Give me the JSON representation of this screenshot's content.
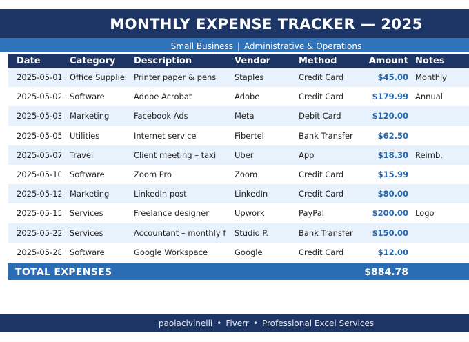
{
  "header": {
    "title": "MONTHLY EXPENSE TRACKER  —  2025",
    "subtitle_left": "Small Business",
    "subtitle_sep": "|",
    "subtitle_right": "Administrative & Operations"
  },
  "table": {
    "columns": [
      "Date",
      "Category",
      "Description",
      "Vendor",
      "Method",
      "Amount",
      "Notes"
    ],
    "rows": [
      [
        "2025-05-01",
        "Office Supplies",
        "Printer paper & pens",
        "Staples",
        "Credit Card",
        "$45.00",
        "Monthly"
      ],
      [
        "2025-05-02",
        "Software",
        "Adobe Acrobat",
        "Adobe",
        "Credit Card",
        "$179.99",
        "Annual"
      ],
      [
        "2025-05-03",
        "Marketing",
        "Facebook Ads",
        "Meta",
        "Debit Card",
        "$120.00",
        ""
      ],
      [
        "2025-05-05",
        "Utilities",
        "Internet service",
        "Fibertel",
        "Bank Transfer",
        "$62.50",
        ""
      ],
      [
        "2025-05-07",
        "Travel",
        "Client meeting – taxi",
        "Uber",
        "App",
        "$18.30",
        "Reimb."
      ],
      [
        "2025-05-10",
        "Software",
        "Zoom Pro",
        "Zoom",
        "Credit Card",
        "$15.99",
        ""
      ],
      [
        "2025-05-12",
        "Marketing",
        "LinkedIn post",
        "LinkedIn",
        "Credit Card",
        "$80.00",
        ""
      ],
      [
        "2025-05-15",
        "Services",
        "Freelance designer",
        "Upwork",
        "PayPal",
        "$200.00",
        "Logo"
      ],
      [
        "2025-05-22",
        "Services",
        "Accountant – monthly fee",
        "Studio P.",
        "Bank Transfer",
        "$150.00",
        ""
      ],
      [
        "2025-05-28",
        "Software",
        "Google Workspace",
        "Google",
        "Credit Card",
        "$12.00",
        ""
      ]
    ]
  },
  "total": {
    "label": "TOTAL EXPENSES",
    "value": "$884.78"
  },
  "footer": {
    "author": "paolacivinelli",
    "sep": "•",
    "platform": "Fiverr",
    "service": "Professional Excel Services"
  },
  "colors": {
    "navy": "#1c3564",
    "accent_blue": "#2f73bb",
    "amount_blue": "#2367b1",
    "row_tint": "#e8f2fc"
  }
}
